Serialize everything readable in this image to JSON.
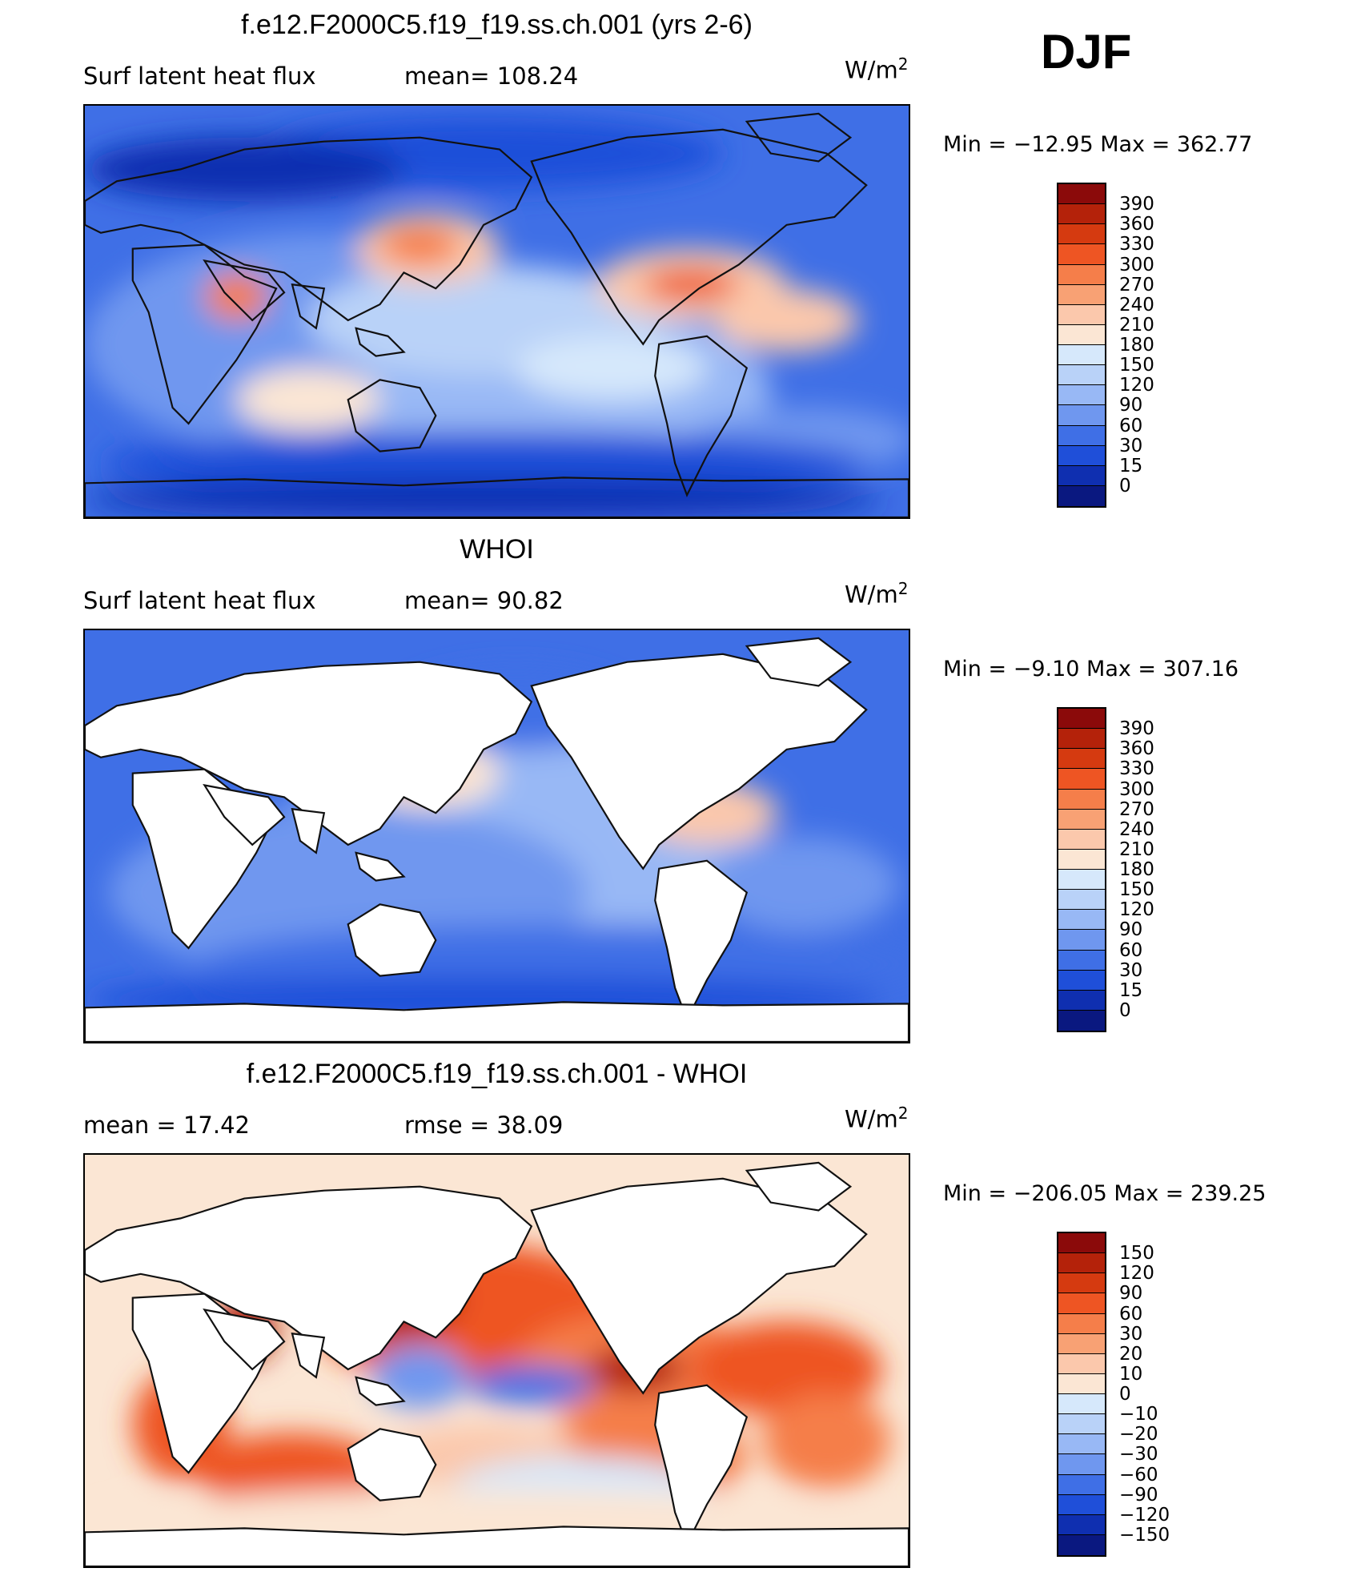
{
  "season": "DJF",
  "colors": {
    "coast": "#111111",
    "land_fill": "#ffffff"
  },
  "chart_data": [
    {
      "type": "heatmap",
      "title": "f.e12.F2000C5.f19_f19.ss.ch.001 (yrs 2-6)",
      "left_label": "Surf  latent  heat  flux",
      "center_label": "mean=  108.24",
      "units_base": "W/m",
      "units_exp": "2",
      "min_label": "Min  =  −12.95",
      "max_label": "Max  =  362.77",
      "min": -12.95,
      "max": 362.77,
      "mean": 108.24,
      "land_masked": false,
      "colorbar": {
        "levels": [
          "390",
          "360",
          "330",
          "300",
          "270",
          "240",
          "210",
          "180",
          "150",
          "120",
          "90",
          "60",
          "30",
          "15",
          "0"
        ],
        "colors": [
          "#8b0a0a",
          "#b4220a",
          "#d53a10",
          "#ee5523",
          "#f57e4a",
          "#f8a174",
          "#fbc8ac",
          "#fbe6d4",
          "#d6e8fb",
          "#b9d2f8",
          "#98b8f5",
          "#6f97ef",
          "#3f6fe6",
          "#1f4fd9",
          "#0f2fb0",
          "#0a1880"
        ]
      }
    },
    {
      "type": "heatmap",
      "title": "WHOI",
      "left_label": "Surf  latent  heat  flux",
      "center_label": "mean=   90.82",
      "units_base": "W/m",
      "units_exp": "2",
      "min_label": "Min  =   −9.10",
      "max_label": "Max  =  307.16",
      "min": -9.1,
      "max": 307.16,
      "mean": 90.82,
      "land_masked": true,
      "colorbar": {
        "levels": [
          "390",
          "360",
          "330",
          "300",
          "270",
          "240",
          "210",
          "180",
          "150",
          "120",
          "90",
          "60",
          "30",
          "15",
          "0"
        ],
        "colors": [
          "#8b0a0a",
          "#b4220a",
          "#d53a10",
          "#ee5523",
          "#f57e4a",
          "#f8a174",
          "#fbc8ac",
          "#fbe6d4",
          "#d6e8fb",
          "#b9d2f8",
          "#98b8f5",
          "#6f97ef",
          "#3f6fe6",
          "#1f4fd9",
          "#0f2fb0",
          "#0a1880"
        ]
      }
    },
    {
      "type": "heatmap",
      "title": "f.e12.F2000C5.f19_f19.ss.ch.001 - WHOI",
      "left_label": "mean  =    17.42",
      "center_label": "rmse  =    38.09",
      "units_base": "W/m",
      "units_exp": "2",
      "min_label": "Min  =  −206.05",
      "max_label": "Max  =  239.25",
      "min": -206.05,
      "max": 239.25,
      "mean": 17.42,
      "rmse": 38.09,
      "land_masked": true,
      "colorbar": {
        "levels": [
          "150",
          "120",
          "90",
          "60",
          "30",
          "20",
          "10",
          "0",
          "−10",
          "−20",
          "−30",
          "−60",
          "−90",
          "−120",
          "−150"
        ],
        "colors": [
          "#8b0a0a",
          "#b4220a",
          "#d53a10",
          "#ee5523",
          "#f57e4a",
          "#f8a174",
          "#fbc8ac",
          "#fbe6d4",
          "#d6e8fb",
          "#b9d2f8",
          "#98b8f5",
          "#6f97ef",
          "#3f6fe6",
          "#1f4fd9",
          "#0f2fb0",
          "#0a1880"
        ]
      }
    }
  ]
}
